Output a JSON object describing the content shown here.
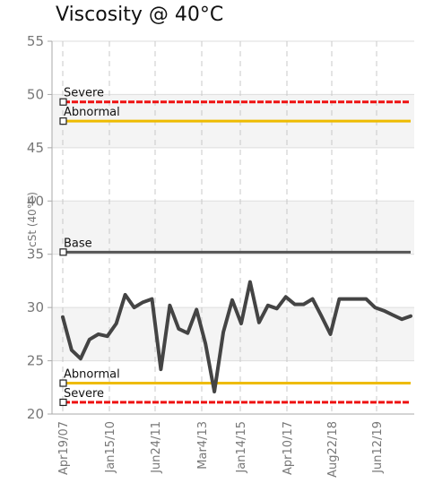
{
  "chart_data": {
    "type": "line",
    "title": "Viscosity @ 40°C",
    "ylabel": "cSt (40°C)",
    "xlabel": "",
    "ylim": [
      20,
      55
    ],
    "yticks": [
      20,
      25,
      30,
      35,
      40,
      45,
      50,
      55
    ],
    "xticks": [
      "Apr19/07",
      "Jan15/10",
      "Jun24/11",
      "Mar4/13",
      "Jan14/15",
      "Apr10/17",
      "Aug22/18",
      "Jun12/19"
    ],
    "grid": true,
    "reference_lines": [
      {
        "label": "Severe",
        "value": 49.3,
        "color": "#ee1111",
        "dashed": true
      },
      {
        "label": "Abnormal",
        "value": 47.5,
        "color": "#eebb00",
        "dashed": false
      },
      {
        "label": "Base",
        "value": 35.2,
        "color": "#555555",
        "dashed": false
      },
      {
        "label": "Abnormal",
        "value": 22.9,
        "color": "#eebb00",
        "dashed": false
      },
      {
        "label": "Severe",
        "value": 21.1,
        "color": "#ee1111",
        "dashed": true
      }
    ],
    "series": [
      {
        "color": "#444444",
        "values": [
          29.1,
          26.0,
          25.2,
          27.0,
          27.5,
          27.3,
          28.5,
          31.2,
          30.0,
          30.5,
          30.8,
          24.2,
          30.2,
          28.0,
          27.6,
          29.8,
          26.6,
          22.1,
          27.7,
          30.7,
          28.5,
          32.4,
          28.6,
          30.2,
          29.9,
          31.0,
          30.3,
          30.3,
          30.8,
          29.2,
          27.5,
          30.8,
          30.8,
          30.8,
          30.8,
          30.0,
          29.7,
          29.3,
          28.9,
          29.2
        ]
      }
    ]
  }
}
